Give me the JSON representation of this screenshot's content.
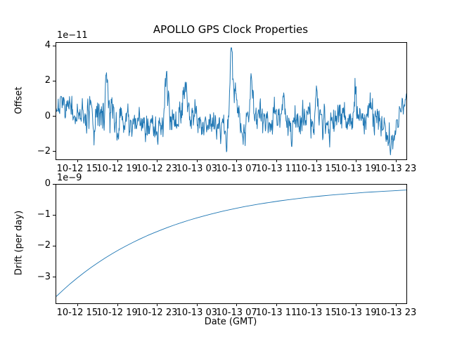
{
  "figure": {
    "background": "#ffffff",
    "text_color": "#000000",
    "spine_color": "#000000"
  },
  "chart_data": [
    {
      "type": "line",
      "title": "APOLLO GPS Clock Properties",
      "ylabel": "Offset",
      "y_scale_factor_text": "1e−11",
      "line_color": "#1f77b4",
      "grid": false,
      "legend": "none",
      "ylim": [
        -2.4,
        4.2
      ],
      "ytick_values": [
        4,
        2,
        0,
        -2
      ],
      "ytick_labels": [
        "4",
        "2",
        "0",
        "−2"
      ],
      "xtick_labels": [
        "10-12 15",
        "10-12 19",
        "10-12 23",
        "10-13 03",
        "10-13 07",
        "10-13 11",
        "10-13 15",
        "10-13 19",
        "10-13 23"
      ],
      "series_description": "noisy clock offset around 0 (units of 1e-11 s), large spike to ~3.9 just before 10-13 03, deep dip to ~-2.1 near 10-13 19, ends rising to ~+1.3",
      "approx_max": 3.9,
      "approx_min": -2.1,
      "noise_model": {
        "n": 900,
        "seed": 7,
        "ar": 0.45,
        "clip": [
          -2.15,
          3.92
        ],
        "envelope": [
          [
            0.0,
            0.6,
            0.3
          ],
          [
            0.03,
            0.45,
            0.35
          ],
          [
            0.06,
            0.0,
            0.4
          ],
          [
            0.12,
            0.1,
            0.5
          ],
          [
            0.145,
            0.35,
            0.55
          ],
          [
            0.17,
            -0.2,
            0.5
          ],
          [
            0.22,
            -0.1,
            0.4
          ],
          [
            0.28,
            -0.5,
            0.5
          ],
          [
            0.31,
            0.4,
            0.55
          ],
          [
            0.34,
            0.0,
            0.45
          ],
          [
            0.365,
            0.45,
            0.5
          ],
          [
            0.395,
            -0.1,
            0.4
          ],
          [
            0.45,
            -0.3,
            0.45
          ],
          [
            0.48,
            -0.55,
            0.4
          ],
          [
            0.498,
            -0.1,
            0.4
          ],
          [
            0.515,
            0.3,
            0.45
          ],
          [
            0.532,
            -0.45,
            0.3
          ],
          [
            0.558,
            0.5,
            0.45
          ],
          [
            0.58,
            0.1,
            0.45
          ],
          [
            0.62,
            -0.15,
            0.45
          ],
          [
            0.7,
            0.0,
            0.45
          ],
          [
            0.78,
            -0.05,
            0.45
          ],
          [
            0.86,
            0.1,
            0.48
          ],
          [
            0.915,
            -0.05,
            0.45
          ],
          [
            0.942,
            -0.8,
            0.4
          ],
          [
            0.958,
            -1.45,
            0.4
          ],
          [
            0.972,
            -0.45,
            0.35
          ],
          [
            0.988,
            0.6,
            0.35
          ],
          [
            1.0,
            0.9,
            0.25
          ]
        ],
        "features": [
          [
            0.108,
            0.002,
            -1.0
          ],
          [
            0.145,
            0.004,
            1.7
          ],
          [
            0.175,
            0.003,
            -1.1
          ],
          [
            0.287,
            0.003,
            -1.0
          ],
          [
            0.316,
            0.004,
            1.6
          ],
          [
            0.368,
            0.0035,
            1.4
          ],
          [
            0.487,
            0.0015,
            -1.6
          ],
          [
            0.4995,
            0.003,
            3.3
          ],
          [
            0.504,
            0.004,
            1.2
          ],
          [
            0.512,
            0.007,
            0.7
          ],
          [
            0.532,
            0.006,
            -0.5
          ],
          [
            0.558,
            0.004,
            1.1
          ],
          [
            0.648,
            0.003,
            1.2
          ],
          [
            0.672,
            0.003,
            -1.1
          ],
          [
            0.742,
            0.003,
            1.5
          ],
          [
            0.78,
            0.003,
            -1.0
          ],
          [
            0.853,
            0.003,
            1.3
          ],
          [
            0.895,
            0.003,
            1.3
          ],
          [
            0.955,
            0.002,
            -0.6
          ],
          [
            0.962,
            0.0015,
            -0.7
          ]
        ]
      }
    },
    {
      "type": "line",
      "title": "",
      "ylabel": "Drift (per day)",
      "xlabel": "Date (GMT)",
      "y_scale_factor_text": "1e−9",
      "line_color": "#1f77b4",
      "grid": false,
      "legend": "none",
      "ylim": [
        -3.82,
        0
      ],
      "ytick_values": [
        0,
        -1,
        -2,
        -3
      ],
      "ytick_labels": [
        "0",
        "−1",
        "−2",
        "−3"
      ],
      "xtick_labels": [
        "10-12 15",
        "10-12 19",
        "10-12 23",
        "10-13 03",
        "10-13 07",
        "10-13 11",
        "10-13 15",
        "10-13 19",
        "10-13 23"
      ],
      "series_description": "smooth exponential recovery of drift (units of 1e-9 per day) from -3.6 toward -0.18",
      "values": [
        -3.6,
        -3.389,
        -3.19,
        -3.003,
        -2.827,
        -2.662,
        -2.506,
        -2.359,
        -2.221,
        -2.09,
        -1.968,
        -1.853,
        -1.744,
        -1.642,
        -1.545,
        -1.455,
        -1.369,
        -1.289,
        -1.214,
        -1.142,
        -1.075,
        -1.012,
        -0.953,
        -0.897,
        -0.844,
        -0.795,
        -0.748,
        -0.704,
        -0.663,
        -0.624,
        -0.587,
        -0.553,
        -0.521,
        -0.49,
        -0.461,
        -0.434,
        -0.409,
        -0.385,
        -0.362,
        -0.341,
        -0.321,
        -0.302,
        -0.284,
        -0.268,
        -0.252,
        -0.237,
        -0.223,
        -0.21,
        -0.198,
        -0.186,
        -0.175
      ]
    }
  ]
}
